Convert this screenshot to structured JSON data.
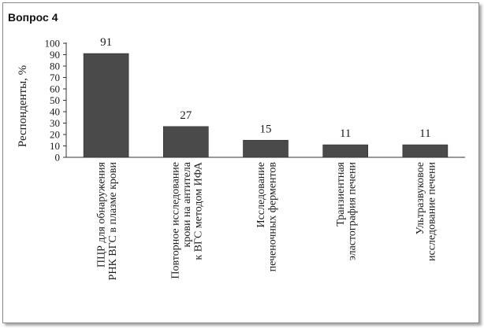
{
  "panel": {
    "title": "Вопрос 4"
  },
  "chart_data": {
    "type": "bar",
    "title": "",
    "ylabel": "Респонденты, %",
    "xlabel": "",
    "ylim": [
      0,
      100
    ],
    "yticks": [
      "0",
      "10",
      "20",
      "30",
      "40",
      "50",
      "60",
      "70",
      "80",
      "90",
      "100"
    ],
    "grid": false,
    "bar_color": "#4a4a4a",
    "categories": [
      [
        "ПЦР для обнаружения",
        "РНК ВГС в плазме крови"
      ],
      [
        "Повторное исследование",
        "крови на антитела",
        "к ВГС методом ИФА"
      ],
      [
        "Исследование",
        "печеночных ферментов"
      ],
      [
        "Транзиентная",
        "эластография печени"
      ],
      [
        "Ультразвуковое",
        "исследование печени"
      ]
    ],
    "values": [
      91,
      27,
      15,
      11,
      11
    ],
    "value_labels": [
      "91",
      "27",
      "15",
      "11",
      "11"
    ]
  }
}
